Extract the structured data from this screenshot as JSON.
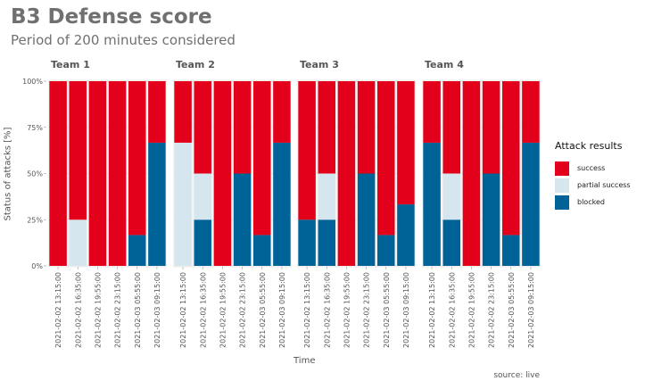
{
  "chart_data": {
    "type": "bar",
    "stacked": true,
    "title": "B3 Defense score",
    "subtitle": "Period of 200 minutes considered",
    "xlabel": "Time",
    "ylabel": "Status of attacks [%]",
    "ylim": [
      0,
      100
    ],
    "yticks": [
      "0%",
      "25%",
      "50%",
      "75%",
      "100%"
    ],
    "source": "source: live",
    "grid": true,
    "legend": {
      "title": "Attack results",
      "placement": "right",
      "items": [
        {
          "name": "success",
          "color": "#E2001A"
        },
        {
          "name": "partial success",
          "color": "#D6E6EE"
        },
        {
          "name": "blocked",
          "color": "#006397"
        }
      ]
    },
    "categories": [
      "2021-02-02 13:15:00",
      "2021-02-02 16:35:00",
      "2021-02-02 19:55:00",
      "2021-02-02 23:15:00",
      "2021-02-03 05:55:00",
      "2021-02-03 09:15:00"
    ],
    "panels": [
      {
        "name": "Team 1",
        "blocked": [
          0,
          0,
          0,
          0,
          16.7,
          66.7
        ],
        "partial_success": [
          0,
          25,
          0,
          0,
          0,
          0
        ],
        "success": [
          100,
          75,
          100,
          100,
          83.3,
          33.3
        ]
      },
      {
        "name": "Team 2",
        "blocked": [
          0,
          25,
          0,
          50,
          16.7,
          66.7
        ],
        "partial_success": [
          66.7,
          25,
          0,
          0,
          0,
          0
        ],
        "success": [
          33.3,
          50,
          100,
          50,
          83.3,
          33.3
        ]
      },
      {
        "name": "Team 3",
        "blocked": [
          25,
          25,
          0,
          50,
          16.7,
          33.3
        ],
        "partial_success": [
          0,
          25,
          0,
          0,
          0,
          0
        ],
        "success": [
          75,
          50,
          100,
          50,
          83.3,
          66.7
        ]
      },
      {
        "name": "Team 4",
        "blocked": [
          66.7,
          25,
          0,
          50,
          16.7,
          66.7
        ],
        "partial_success": [
          0,
          25,
          0,
          0,
          0,
          0
        ],
        "success": [
          33.3,
          50,
          100,
          50,
          83.3,
          33.3
        ]
      }
    ]
  }
}
